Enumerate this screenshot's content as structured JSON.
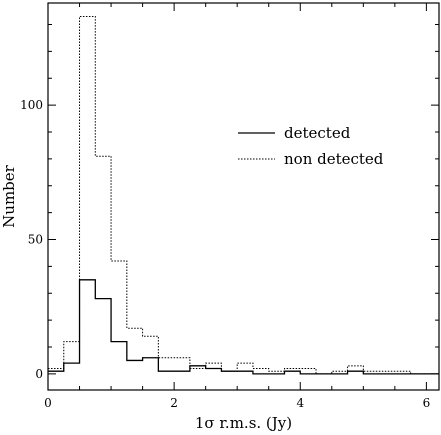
{
  "chart_data": {
    "type": "histogram",
    "xlabel": "1σ r.m.s. (Jy)",
    "ylabel": "Number",
    "xlim": [
      0,
      6.2
    ],
    "ylim": [
      -6,
      138
    ],
    "xticks": [
      0,
      2,
      4,
      6
    ],
    "yticks": [
      0,
      50,
      100
    ],
    "legend_position": "center-right",
    "bin_edges": [
      0,
      0.25,
      0.5,
      0.75,
      1.0,
      1.25,
      1.5,
      1.75,
      2.0,
      2.25,
      2.5,
      2.75,
      3.0,
      3.25,
      3.5,
      3.75,
      4.0,
      4.25,
      4.5,
      4.75,
      5.0,
      5.25,
      5.5,
      5.75,
      6.0,
      6.2
    ],
    "series": [
      {
        "name": "detected",
        "style": "solid",
        "color": "#000000",
        "counts": [
          1,
          4,
          35,
          28,
          12,
          5,
          6,
          1,
          1,
          3,
          2,
          1,
          1,
          0,
          0,
          1,
          0,
          0,
          0,
          1,
          0,
          0,
          0,
          0,
          0
        ]
      },
      {
        "name": "non detected",
        "style": "dotted",
        "color": "#000000",
        "counts": [
          2,
          12,
          133,
          81,
          42,
          17,
          14,
          6,
          6,
          2,
          4,
          1,
          4,
          2,
          1,
          2,
          2,
          0,
          1,
          3,
          1,
          1,
          1,
          0,
          0
        ]
      }
    ]
  }
}
